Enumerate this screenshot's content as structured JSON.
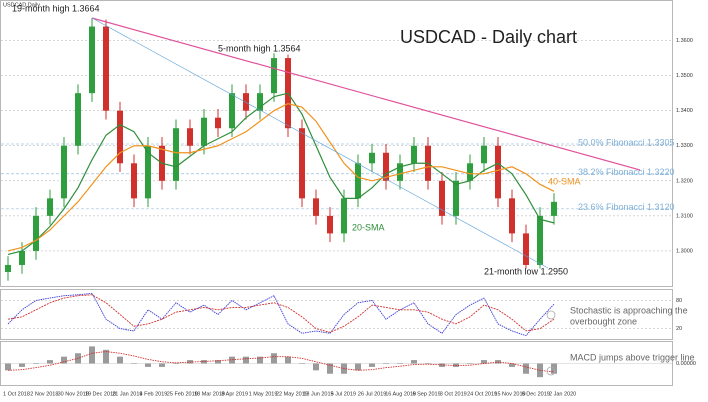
{
  "chart_data": {
    "type": "candlestick",
    "title": "USDCAD - Daily chart",
    "symbol": "USDCAD,Daily",
    "annotations": [
      "19-month high 1.3664",
      "5-month high 1.3564",
      "21-month low 1.2950",
      "20-SMA",
      "40-SMA",
      "Stochastic is approaching the",
      "overbought zone",
      "MACD jumps above trigger line"
    ],
    "x_labels": [
      "1 Oct 2018",
      "2 Nov 2018",
      "30 Nov 2018",
      "19 Dec 2018",
      "21 Jan 2019",
      "4 Feb 2019",
      "25 Feb 2019",
      "18 Mar 2019",
      "8 Apr 2019",
      "1 May 2019",
      "22 May 2019",
      "13 Jun 2019",
      "5 Jul 2019",
      "26 Jul 2019",
      "16 Aug 2019",
      "6 Sep 2019",
      "3 Oct 2019",
      "24 Oct 2019",
      "15 Nov 2019",
      "6 Dec 2019",
      "2 Jan 2020"
    ],
    "ylim": [
      1.29,
      1.371
    ],
    "yticks": [
      {
        "value": 1.3,
        "label": "1.3000"
      },
      {
        "value": 1.31,
        "label": "1.3100"
      },
      {
        "value": 1.32,
        "label": "1.3200"
      },
      {
        "value": 1.33,
        "label": "1.3300"
      },
      {
        "value": 1.34,
        "label": "1.3400"
      },
      {
        "value": 1.35,
        "label": "1.3500"
      },
      {
        "value": 1.36,
        "label": "1.3600"
      }
    ],
    "up_color": "#2e9e3e",
    "down_color": "#d0312d",
    "open": [
      1.294,
      1.296,
      1.3,
      1.31,
      1.315,
      1.33,
      1.345,
      1.364,
      1.34,
      1.325,
      1.315,
      1.33,
      1.32,
      1.335,
      1.33,
      1.338,
      1.335,
      1.345,
      1.34,
      1.345,
      1.355,
      1.335,
      1.315,
      1.31,
      1.305,
      1.315,
      1.325,
      1.328,
      1.32,
      1.325,
      1.33,
      1.32,
      1.31,
      1.32,
      1.325,
      1.33,
      1.315,
      1.305,
      1.296,
      1.31
    ],
    "high": [
      1.2985,
      1.3025,
      1.3125,
      1.3175,
      1.3325,
      1.3475,
      1.3664,
      1.366,
      1.3425,
      1.3275,
      1.3325,
      1.3325,
      1.3375,
      1.3375,
      1.3405,
      1.3405,
      1.3475,
      1.3475,
      1.3475,
      1.3564,
      1.356,
      1.3375,
      1.3175,
      1.3125,
      1.3175,
      1.3275,
      1.3305,
      1.3305,
      1.3275,
      1.3325,
      1.3325,
      1.3225,
      1.3225,
      1.3275,
      1.3325,
      1.3325,
      1.3175,
      1.3075,
      1.3125,
      1.3165
    ],
    "low": [
      1.2915,
      1.2935,
      1.2975,
      1.3075,
      1.3125,
      1.3275,
      1.3425,
      1.3375,
      1.3225,
      1.3125,
      1.3125,
      1.3175,
      1.3175,
      1.3275,
      1.3275,
      1.3325,
      1.3325,
      1.3375,
      1.3375,
      1.3425,
      1.3325,
      1.3125,
      1.3075,
      1.3025,
      1.3025,
      1.3125,
      1.3225,
      1.3175,
      1.3175,
      1.3225,
      1.3175,
      1.3075,
      1.3075,
      1.3175,
      1.3225,
      1.3125,
      1.3025,
      1.295,
      1.295,
      1.3075
    ],
    "close": [
      1.296,
      1.3,
      1.31,
      1.315,
      1.33,
      1.345,
      1.364,
      1.34,
      1.325,
      1.315,
      1.33,
      1.32,
      1.335,
      1.33,
      1.338,
      1.335,
      1.345,
      1.34,
      1.345,
      1.355,
      1.335,
      1.315,
      1.31,
      1.305,
      1.315,
      1.325,
      1.328,
      1.32,
      1.325,
      1.33,
      1.32,
      1.31,
      1.32,
      1.325,
      1.33,
      1.315,
      1.305,
      1.296,
      1.31,
      1.314
    ],
    "series": [
      {
        "name": "20-SMA",
        "color": "#2f8f3a",
        "values": [
          1.299,
          1.3,
          1.303,
          1.307,
          1.312,
          1.318,
          1.326,
          1.333,
          1.336,
          1.334,
          1.328,
          1.325,
          1.324,
          1.327,
          1.33,
          1.332,
          1.334,
          1.338,
          1.341,
          1.344,
          1.345,
          1.339,
          1.33,
          1.321,
          1.315,
          1.315,
          1.318,
          1.322,
          1.324,
          1.325,
          1.325,
          1.322,
          1.319,
          1.32,
          1.323,
          1.325,
          1.322,
          1.316,
          1.309,
          1.308
        ]
      },
      {
        "name": "40-SMA",
        "color": "#f0931e",
        "values": [
          1.3,
          1.301,
          1.303,
          1.306,
          1.31,
          1.314,
          1.319,
          1.324,
          1.328,
          1.33,
          1.33,
          1.329,
          1.328,
          1.328,
          1.329,
          1.33,
          1.332,
          1.334,
          1.337,
          1.34,
          1.342,
          1.341,
          1.337,
          1.331,
          1.325,
          1.321,
          1.32,
          1.321,
          1.322,
          1.323,
          1.324,
          1.324,
          1.323,
          1.322,
          1.322,
          1.323,
          1.324,
          1.322,
          1.319,
          1.317
        ]
      }
    ],
    "fib_levels": [
      {
        "value": 1.3305,
        "label": "50.0% Fibonacci 1.3305"
      },
      {
        "value": 1.322,
        "label": "38.2% Fibonacci 1.3220"
      },
      {
        "value": 1.312,
        "label": "23.6% Fibonacci 1.3120"
      }
    ],
    "fib_color": "#7fb0d8",
    "stochastic": {
      "ylim": [
        0,
        100
      ],
      "yticks": [
        20,
        80
      ],
      "series": [
        {
          "color": "#3a3ad6",
          "values": [
            30,
            60,
            80,
            85,
            90,
            92,
            95,
            40,
            20,
            15,
            60,
            40,
            75,
            55,
            70,
            50,
            80,
            60,
            75,
            90,
            30,
            10,
            15,
            10,
            50,
            75,
            80,
            40,
            60,
            75,
            30,
            10,
            50,
            70,
            85,
            30,
            15,
            5,
            40,
            72
          ]
        },
        {
          "color": "#d0312d",
          "values": [
            40,
            45,
            60,
            75,
            85,
            90,
            92,
            75,
            50,
            25,
            30,
            40,
            55,
            60,
            65,
            60,
            65,
            65,
            70,
            75,
            65,
            45,
            20,
            12,
            25,
            45,
            70,
            65,
            60,
            60,
            55,
            40,
            30,
            45,
            70,
            60,
            40,
            15,
            20,
            40
          ]
        }
      ]
    },
    "macd": {
      "ylim": [
        -0.006,
        0.006
      ],
      "yticks": [
        {
          "value": 0,
          "label": "0.00000"
        }
      ],
      "color": "#9a9a9a",
      "signal_color": "#d0312d",
      "values": [
        -0.002,
        -0.001,
        0.0,
        0.001,
        0.002,
        0.003,
        0.005,
        0.004,
        0.002,
        0.0,
        -0.001,
        -0.001,
        0.0,
        0.001,
        0.001,
        0.001,
        0.002,
        0.002,
        0.002,
        0.003,
        0.002,
        0.0,
        -0.002,
        -0.003,
        -0.003,
        -0.002,
        -0.001,
        0.0,
        0.0,
        0.001,
        0.0,
        -0.001,
        -0.001,
        0.0,
        0.001,
        0.001,
        -0.001,
        -0.003,
        -0.004,
        -0.003
      ],
      "signal": [
        -0.002,
        -0.0018,
        -0.0012,
        -0.0005,
        0.0005,
        0.0015,
        0.003,
        0.0035,
        0.003,
        0.0022,
        0.0012,
        0.0005,
        0.0002,
        0.0004,
        0.0006,
        0.0008,
        0.0011,
        0.0014,
        0.0016,
        0.002,
        0.002,
        0.0015,
        0.0005,
        -0.0005,
        -0.0015,
        -0.002,
        -0.0018,
        -0.0012,
        -0.0008,
        -0.0003,
        -0.0002,
        -0.0004,
        -0.0006,
        -0.0005,
        0.0,
        0.0004,
        0.0,
        -0.001,
        -0.002,
        -0.0025
      ]
    }
  }
}
